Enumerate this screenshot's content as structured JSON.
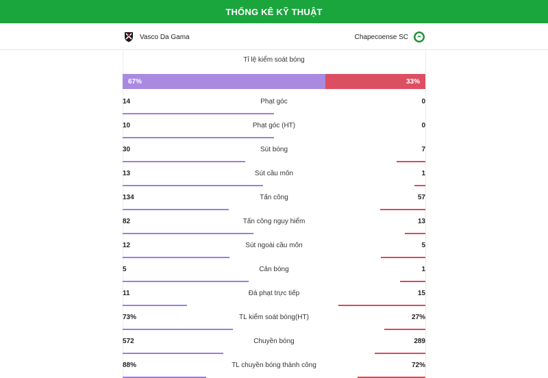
{
  "header": {
    "title": "THỐNG KÊ KỸ THUẬT"
  },
  "teams": {
    "home": {
      "name": "Vasco Da Gama",
      "logo_icon": "vasco-crest-icon"
    },
    "away": {
      "name": "Chapecoense SC",
      "logo_icon": "chapecoense-crest-icon"
    }
  },
  "colors": {
    "header": "#1ba53d",
    "home": "#a98ae0",
    "away": "#dc4f62"
  },
  "possession": {
    "label": "Tỉ lệ kiểm soát bóng",
    "home": "67%",
    "away": "33%",
    "home_fraction": 0.67
  },
  "stats": [
    {
      "label": "Phạt góc",
      "home": "14",
      "away": "0",
      "home_share": 0.5,
      "away_share": 0
    },
    {
      "label": "Phạt góc (HT)",
      "home": "10",
      "away": "0",
      "home_share": 0.5,
      "away_share": 0
    },
    {
      "label": "Sút bóng",
      "home": "30",
      "away": "7",
      "home_share": 0.405,
      "away_share": 0.095
    },
    {
      "label": "Sút cầu môn",
      "home": "13",
      "away": "1",
      "home_share": 0.464,
      "away_share": 0.036
    },
    {
      "label": "Tấn công",
      "home": "134",
      "away": "57",
      "home_share": 0.351,
      "away_share": 0.149
    },
    {
      "label": "Tấn công nguy hiểm",
      "home": "82",
      "away": "13",
      "home_share": 0.432,
      "away_share": 0.068
    },
    {
      "label": "Sút ngoài cầu môn",
      "home": "12",
      "away": "5",
      "home_share": 0.353,
      "away_share": 0.147
    },
    {
      "label": "Cản bóng",
      "home": "5",
      "away": "1",
      "home_share": 0.417,
      "away_share": 0.083
    },
    {
      "label": "Đá phạt trực tiếp",
      "home": "11",
      "away": "15",
      "home_share": 0.212,
      "away_share": 0.288
    },
    {
      "label": "TL kiểm soát bóng(HT)",
      "home": "73%",
      "away": "27%",
      "home_share": 0.365,
      "away_share": 0.135
    },
    {
      "label": "Chuyền bóng",
      "home": "572",
      "away": "289",
      "home_share": 0.332,
      "away_share": 0.168
    },
    {
      "label": "TL chuyền bóng thành công",
      "home": "88%",
      "away": "72%",
      "home_share": 0.275,
      "away_share": 0.225
    }
  ]
}
